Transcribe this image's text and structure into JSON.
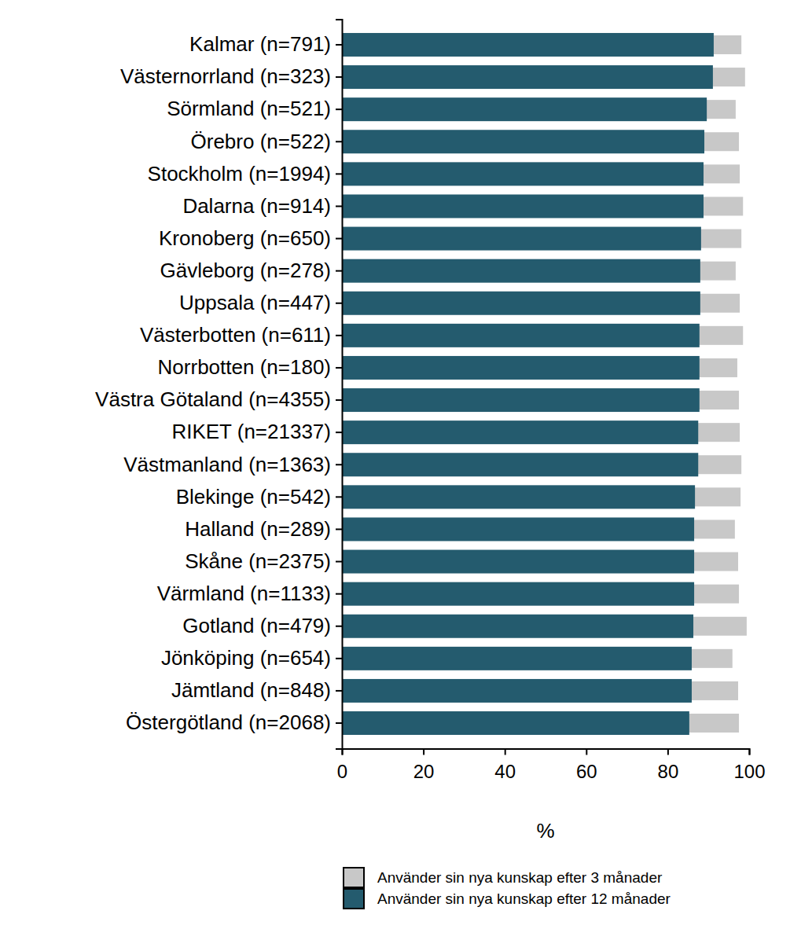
{
  "chart_data": {
    "type": "bar",
    "orientation": "horizontal",
    "categories": [
      "Kalmar (n=791)",
      "Västernorrland (n=323)",
      "Sörmland (n=521)",
      "Örebro (n=522)",
      "Stockholm (n=1994)",
      "Dalarna (n=914)",
      "Kronoberg (n=650)",
      "Gävleborg (n=278)",
      "Uppsala (n=447)",
      "Västerbotten (n=611)",
      "Norrbotten (n=180)",
      "Västra Götaland (n=4355)",
      "RIKET (n=21337)",
      "Västmanland (n=1363)",
      "Blekinge (n=542)",
      "Halland (n=289)",
      "Skåne (n=2375)",
      "Värmland (n=1133)",
      "Gotland (n=479)",
      "Jönköping (n=654)",
      "Jämtland (n=848)",
      "Östergötland (n=2068)"
    ],
    "series": [
      {
        "name": "Använder sin nya kunskap efter 3 månader",
        "color": "#c8c8c8",
        "values": [
          98.1,
          99.0,
          96.7,
          97.5,
          97.7,
          98.5,
          98.1,
          96.7,
          97.7,
          98.5,
          97.1,
          97.5,
          97.7,
          98.1,
          97.9,
          96.5,
          97.3,
          97.5,
          99.4,
          95.9,
          97.3,
          97.5
        ]
      },
      {
        "name": "Använder sin nya kunskap efter 12 månader",
        "color": "#245b6e",
        "values": [
          91.3,
          91.1,
          89.6,
          89.0,
          88.8,
          88.8,
          88.2,
          88.0,
          88.0,
          87.8,
          87.8,
          87.8,
          87.5,
          87.5,
          86.7,
          86.5,
          86.5,
          86.5,
          86.3,
          85.9,
          85.9,
          85.3
        ]
      }
    ],
    "x_label": "%",
    "xlim": [
      0,
      100
    ],
    "xticks": [
      0,
      20,
      40,
      60,
      80,
      100
    ],
    "grid": false,
    "legend": "bottom"
  }
}
